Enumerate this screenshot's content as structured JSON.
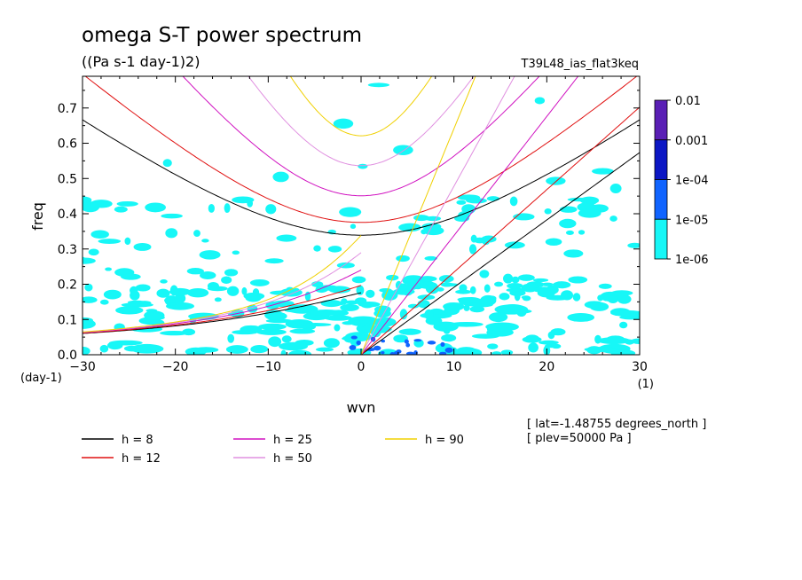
{
  "title": "omega S-T power spectrum",
  "subtitle": "((Pa s-1 day-1)2)",
  "run_label": "T39L48_ias_flat3keq",
  "chart_data": {
    "type": "heatmap",
    "xlabel": "wvn",
    "ylabel": "freq",
    "x_unit_label": "(1)",
    "y_unit_label": "(day-1)",
    "xlim": [
      -30,
      30
    ],
    "ylim": [
      0,
      0.79
    ],
    "xticks": [
      -30,
      -20,
      -10,
      0,
      10,
      20,
      30
    ],
    "xtick_labels": [
      "−30",
      "−20",
      "−10",
      "0",
      "10",
      "20",
      "30"
    ],
    "yticks": [
      0,
      0.1,
      0.2,
      0.3,
      0.4,
      0.5,
      0.6,
      0.7
    ],
    "ytick_labels": [
      "0.0",
      "0.1",
      "0.2",
      "0.3",
      "0.4",
      "0.5",
      "0.6",
      "0.7"
    ],
    "colorbar": {
      "levels": [
        "0.01",
        "0.001",
        "1e-04",
        "1e-05",
        "1e-06"
      ],
      "colors": [
        "#5a1fb5",
        "#0c17c4",
        "#1064ff",
        "#17f7f7"
      ]
    },
    "contour_fill_level": "1e-06",
    "dispersion_curves": [
      {
        "label": "h =  8",
        "h": 8,
        "color": "#000000"
      },
      {
        "label": "h = 12",
        "h": 12,
        "color": "#e01010"
      },
      {
        "label": "h = 25",
        "h": 25,
        "color": "#d010c0"
      },
      {
        "label": "h = 50",
        "h": 50,
        "color": "#e090e0"
      },
      {
        "label": "h = 90",
        "h": 90,
        "color": "#f0d000"
      }
    ]
  },
  "footnotes": [
    "[ lat=-1.48755 degrees_north ]",
    "[ plev=50000 Pa ]"
  ]
}
